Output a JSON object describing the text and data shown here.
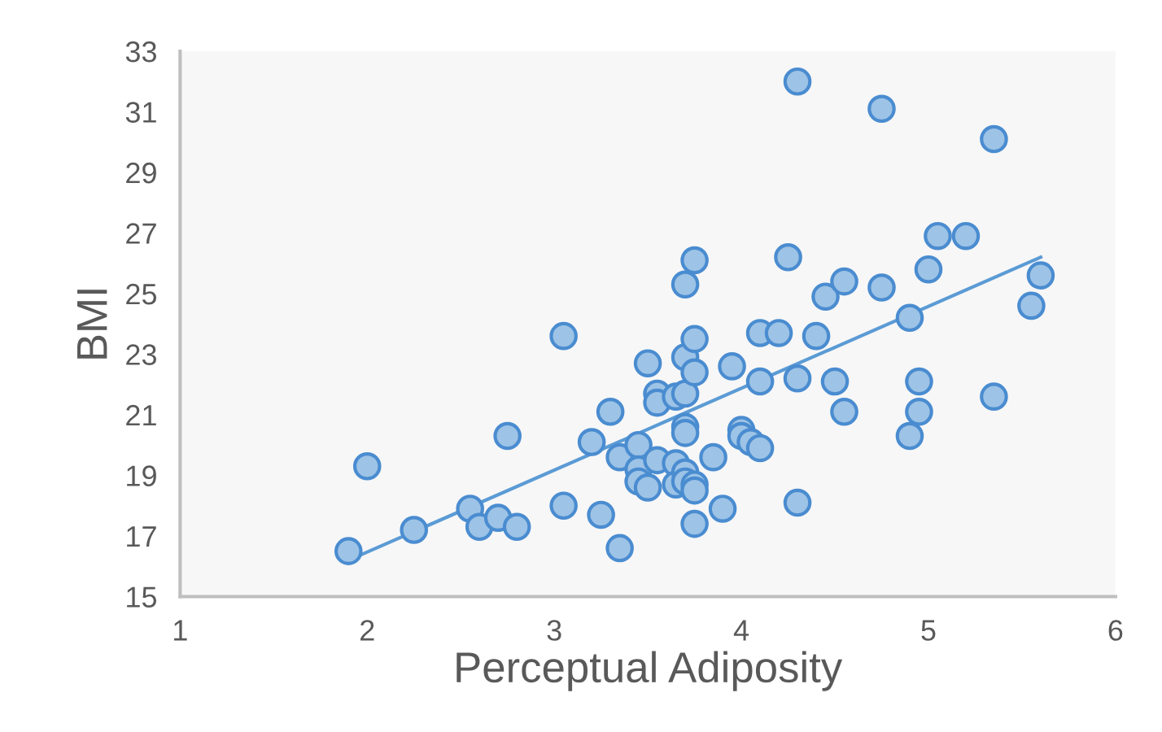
{
  "chart_data": {
    "type": "scatter",
    "xlabel": "Perceptual Adiposity",
    "ylabel": "BMI",
    "xlim": [
      1,
      6
    ],
    "ylim": [
      15,
      33
    ],
    "xticks": [
      1,
      2,
      3,
      4,
      5,
      6
    ],
    "yticks": [
      15,
      17,
      19,
      21,
      23,
      25,
      27,
      29,
      31,
      33
    ],
    "grid": false,
    "legend": false,
    "marker": "circle",
    "series": [
      {
        "color": "#9dc3e6",
        "x": [
          1.9,
          2.0,
          2.25,
          2.55,
          2.6,
          2.7,
          2.75,
          2.8,
          3.05,
          3.05,
          3.2,
          3.25,
          3.3,
          3.35,
          3.35,
          3.45,
          3.45,
          3.45,
          3.5,
          3.5,
          3.55,
          3.55,
          3.55,
          3.65,
          3.65,
          3.65,
          3.7,
          3.7,
          3.7,
          3.7,
          3.7,
          3.7,
          3.7,
          3.75,
          3.75,
          3.75,
          3.75,
          3.75,
          3.75,
          3.85,
          3.9,
          3.95,
          4.0,
          4.0,
          4.05,
          4.1,
          4.1,
          4.1,
          4.2,
          4.25,
          4.3,
          4.3,
          4.3,
          4.4,
          4.45,
          4.5,
          4.55,
          4.55,
          4.75,
          4.75,
          4.9,
          4.9,
          4.95,
          4.95,
          5.0,
          5.05,
          5.2,
          5.35,
          5.35,
          5.55,
          5.6
        ],
        "values": [
          16.5,
          19.3,
          17.2,
          17.9,
          17.3,
          17.6,
          20.3,
          17.3,
          23.6,
          18.0,
          20.1,
          17.7,
          21.1,
          16.6,
          19.6,
          20.0,
          19.2,
          18.8,
          22.7,
          18.6,
          21.7,
          21.4,
          19.5,
          21.6,
          19.4,
          18.7,
          25.3,
          22.9,
          21.7,
          20.6,
          20.4,
          19.1,
          18.8,
          26.1,
          23.5,
          22.4,
          18.7,
          18.5,
          17.4,
          19.6,
          17.9,
          22.6,
          20.5,
          20.3,
          20.1,
          23.7,
          22.1,
          19.9,
          23.7,
          26.2,
          32.0,
          22.2,
          18.1,
          23.6,
          24.9,
          22.1,
          25.4,
          21.1,
          31.1,
          25.2,
          24.2,
          20.3,
          22.1,
          21.1,
          25.8,
          26.9,
          26.9,
          30.1,
          21.6,
          24.6,
          25.6
        ]
      },
      {
        "type": "line",
        "color": "#5b9bd5",
        "line_style": "solid",
        "marker": "none",
        "x": [
          1.9,
          5.6
        ],
        "values": [
          16.2,
          26.2
        ]
      }
    ]
  }
}
